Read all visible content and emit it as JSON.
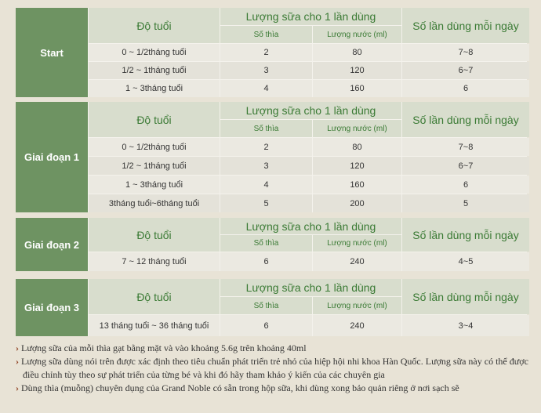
{
  "blocks": [
    {
      "label": "Start",
      "header": {
        "age": "Độ tuổi",
        "amount": "Lượng sữa cho 1 lần dùng",
        "spoons": "Số thìa",
        "water": "Lượng nước (ml)",
        "times": "Số lần dùng mỗi ngày"
      },
      "rows": [
        [
          "0 ~ 1/2tháng tuổi",
          2,
          80,
          "7~8"
        ],
        [
          "1/2 ~ 1tháng tuổi",
          3,
          120,
          "6~7"
        ],
        [
          "1 ~ 3tháng tuổi",
          4,
          160,
          6
        ]
      ]
    },
    {
      "label": "Giai đoạn 1",
      "header": {
        "age": "Độ tuổi",
        "amount": "Lượng sữa cho 1 lần dùng",
        "spoons": "Số thìa",
        "water": "Lượng nước (ml)",
        "times": "Số lần dùng mỗi ngày"
      },
      "rows": [
        [
          "0 ~ 1/2tháng tuổi",
          2,
          80,
          "7~8"
        ],
        [
          "1/2 ~ 1tháng tuổi",
          3,
          120,
          "6~7"
        ],
        [
          "1 ~ 3tháng tuổi",
          4,
          160,
          6
        ],
        [
          "3tháng tuổi~6tháng tuổi",
          5,
          200,
          5
        ]
      ]
    },
    {
      "label": "Giai đoạn 2",
      "header": {
        "age": "Độ tuổi",
        "amount": "Lượng sữa cho 1 lần dùng",
        "spoons": "Số thìa",
        "water": "Lượng nước (ml)",
        "times": "Số lần dùng mỗi ngày"
      },
      "rows": [
        [
          "7 ~ 12 tháng tuổi",
          6,
          240,
          "4~5"
        ]
      ]
    },
    {
      "label": "Giai đoạn 3",
      "header": {
        "age": "Độ tuổi",
        "amount": "Lượng sữa cho 1 lần dùng",
        "spoons": "Số thìa",
        "water": "Lượng nước (ml)",
        "times": "Số lần dùng mỗi ngày"
      },
      "rows": [
        [
          "13 tháng tuổi ~ 36 tháng tuổi",
          6,
          240,
          "3~4"
        ]
      ]
    }
  ],
  "notes": [
    "Lượng sữa của mỗi thìa gạt bằng mặt và vào khoảng 5.6g trên khoảng 40ml",
    "Lượng sữa dùng nói trên được xác định theo tiêu chuẩn phát triển trẻ nhỏ của hiệp hội nhi khoa Hàn Quốc. Lượng sữa này có thể được điều chỉnh tùy theo sự phát triển của từng bé và khi đó hãy tham khảo ý kiến của các chuyên gia",
    "Dùng thìa (muỗng) chuyên dụng của Grand Noble có sẵn trong hộp sữa, khi dùng xong bảo quản riêng ở nơi sạch sẽ"
  ]
}
